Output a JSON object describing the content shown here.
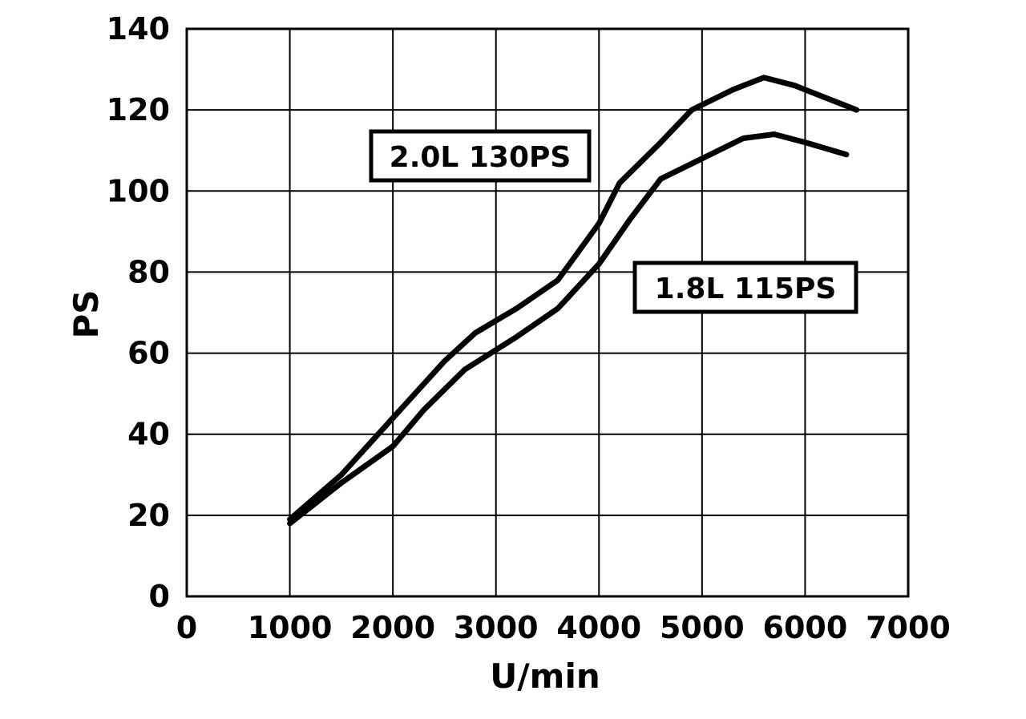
{
  "chart_data": {
    "type": "line",
    "xlabel": "U/min",
    "ylabel": "PS",
    "xlim": [
      0,
      7000
    ],
    "ylim": [
      0,
      140
    ],
    "x_ticks": [
      "0",
      "1000",
      "2000",
      "3000",
      "4000",
      "5000",
      "6000",
      "7000"
    ],
    "y_ticks": [
      "0",
      "20",
      "40",
      "60",
      "80",
      "100",
      "120",
      "140"
    ],
    "grid": true,
    "legend": "none",
    "series": [
      {
        "name": "2.0L 130PS",
        "points": [
          [
            1000,
            19
          ],
          [
            1500,
            30
          ],
          [
            2000,
            44
          ],
          [
            2500,
            58
          ],
          [
            2800,
            65
          ],
          [
            3200,
            71
          ],
          [
            3600,
            78
          ],
          [
            4000,
            92
          ],
          [
            4200,
            102
          ],
          [
            4600,
            112
          ],
          [
            4900,
            120
          ],
          [
            5300,
            125
          ],
          [
            5600,
            128
          ],
          [
            5900,
            126
          ],
          [
            6200,
            123
          ],
          [
            6500,
            120
          ]
        ]
      },
      {
        "name": "1.8L 115PS",
        "points": [
          [
            1000,
            18
          ],
          [
            1500,
            28
          ],
          [
            2000,
            37
          ],
          [
            2300,
            46
          ],
          [
            2700,
            56
          ],
          [
            3200,
            64
          ],
          [
            3600,
            71
          ],
          [
            4000,
            82
          ],
          [
            4300,
            93
          ],
          [
            4600,
            103
          ],
          [
            5000,
            108
          ],
          [
            5400,
            113
          ],
          [
            5700,
            114
          ],
          [
            6000,
            112
          ],
          [
            6400,
            109
          ]
        ]
      }
    ]
  }
}
